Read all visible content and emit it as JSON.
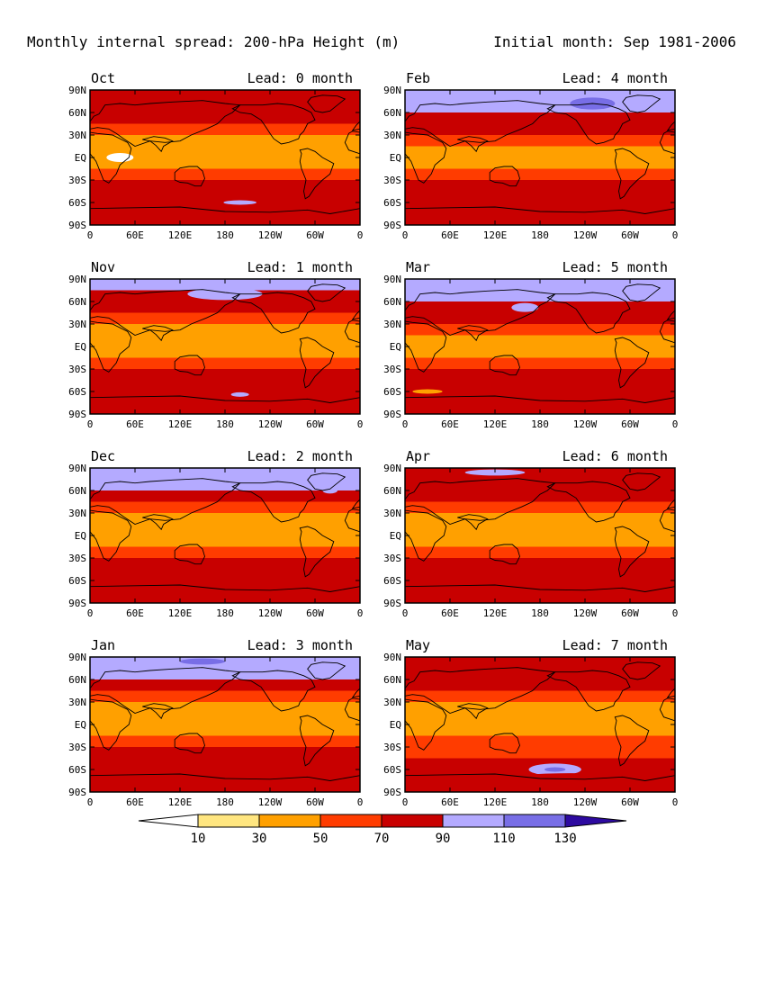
{
  "header": {
    "left": "Monthly internal spread: 200-hPa Height (m)",
    "right": "Initial month: Sep 1981-2006"
  },
  "chart_data": {
    "type": "heatmap",
    "variable": "200-hPa Height (m)",
    "colors": {
      "under": "#ffffff",
      "levels": [
        "#ffe680",
        "#ffa000",
        "#ff3c00",
        "#c80000",
        "#b4aaff",
        "#786ee6",
        "#2d0aa0"
      ],
      "land_outline": "#000000"
    },
    "colorbar": {
      "ticks": [
        "10",
        "30",
        "50",
        "70",
        "90",
        "110",
        "130"
      ],
      "extend": "both"
    },
    "y_ticks": [
      "90N",
      "60N",
      "30N",
      "EQ",
      "30S",
      "60S",
      "90S"
    ],
    "panels": [
      {
        "month": "Oct",
        "lead": "Lead: 0 month",
        "x_ticks": [
          "0",
          "60E",
          "120E",
          "180",
          "120W",
          "60W",
          "0"
        ],
        "bands": [
          3,
          3,
          3,
          2,
          1,
          1,
          1,
          2,
          3,
          3,
          3,
          3
        ],
        "patches": [
          {
            "lon": 40,
            "lat": 0,
            "rlon": 18,
            "rlat": 6,
            "level": 0
          },
          {
            "lon": 200,
            "lat": -60,
            "rlon": 22,
            "rlat": 3,
            "level": 4
          },
          {
            "lon": 320,
            "lat": 70,
            "rlon": 25,
            "rlat": 10,
            "level": 3
          }
        ]
      },
      {
        "month": "Feb",
        "lead": "Lead: 4 month",
        "x_ticks": [
          "0",
          "60E",
          "120E",
          "180",
          "120W",
          "60W",
          "0"
        ],
        "bands": [
          4,
          4,
          3,
          3,
          2,
          1,
          1,
          2,
          3,
          3,
          3,
          3
        ],
        "patches": [
          {
            "lon": 250,
            "lat": 72,
            "rlon": 30,
            "rlat": 8,
            "level": 5
          },
          {
            "lon": 190,
            "lat": -62,
            "rlon": 25,
            "rlat": 6,
            "level": 3
          }
        ]
      },
      {
        "month": "Nov",
        "lead": "Lead: 1 month",
        "x_ticks": [
          "0",
          "60E",
          "120E",
          "180",
          "120W",
          "60W",
          "0"
        ],
        "bands": [
          4,
          3,
          3,
          2,
          1,
          1,
          1,
          2,
          3,
          3,
          3,
          3
        ],
        "patches": [
          {
            "lon": 200,
            "lat": -64,
            "rlon": 12,
            "rlat": 3,
            "level": 4
          },
          {
            "lon": 180,
            "lat": 70,
            "rlon": 50,
            "rlat": 8,
            "level": 4
          }
        ]
      },
      {
        "month": "Mar",
        "lead": "Lead: 5 month",
        "x_ticks": [
          "0",
          "60E",
          "120E",
          "180",
          "120W",
          "60W",
          "0"
        ],
        "bands": [
          4,
          4,
          3,
          3,
          2,
          1,
          1,
          2,
          3,
          3,
          3,
          3
        ],
        "patches": [
          {
            "lon": 160,
            "lat": 52,
            "rlon": 18,
            "rlat": 6,
            "level": 4
          },
          {
            "lon": 30,
            "lat": -60,
            "rlon": 20,
            "rlat": 3,
            "level": 1
          }
        ]
      },
      {
        "month": "Dec",
        "lead": "Lead: 2 month",
        "x_ticks": [
          "0",
          "60E",
          "120E",
          "180",
          "120W",
          "60W",
          "0"
        ],
        "bands": [
          4,
          4,
          3,
          2,
          1,
          1,
          1,
          2,
          3,
          3,
          3,
          3
        ],
        "patches": [
          {
            "lon": 320,
            "lat": 60,
            "rlon": 10,
            "rlat": 4,
            "level": 4
          },
          {
            "lon": 180,
            "lat": -70,
            "rlon": 60,
            "rlat": 6,
            "level": 3
          }
        ]
      },
      {
        "month": "Apr",
        "lead": "Lead: 6 month",
        "x_ticks": [
          "0",
          "60E",
          "120E",
          "180",
          "120W",
          "60W",
          "0"
        ],
        "bands": [
          3,
          3,
          3,
          2,
          1,
          1,
          1,
          2,
          3,
          3,
          3,
          3
        ],
        "patches": [
          {
            "lon": 120,
            "lat": 84,
            "rlon": 40,
            "rlat": 4,
            "level": 4
          },
          {
            "lon": 220,
            "lat": -62,
            "rlon": 30,
            "rlat": 6,
            "level": 3
          }
        ]
      },
      {
        "month": "Jan",
        "lead": "Lead: 3 month",
        "x_ticks": [
          "0",
          "60E",
          "120E",
          "180",
          "120W",
          "60W",
          "0"
        ],
        "bands": [
          4,
          4,
          3,
          2,
          1,
          1,
          1,
          2,
          3,
          3,
          3,
          3
        ],
        "patches": [
          {
            "lon": 150,
            "lat": 84,
            "rlon": 30,
            "rlat": 4,
            "level": 5
          },
          {
            "lon": 220,
            "lat": -60,
            "rlon": 30,
            "rlat": 6,
            "level": 3
          }
        ]
      },
      {
        "month": "May",
        "lead": "Lead: 7 month",
        "x_ticks": [
          "0",
          "60E",
          "120E",
          "180",
          "120W",
          "60W",
          "0"
        ],
        "bands": [
          3,
          3,
          3,
          2,
          1,
          1,
          1,
          2,
          2,
          3,
          3,
          3
        ],
        "patches": [
          {
            "lon": 200,
            "lat": -60,
            "rlon": 35,
            "rlat": 8,
            "level": 4
          },
          {
            "lon": 200,
            "lat": -60,
            "rlon": 14,
            "rlat": 3,
            "level": 5
          },
          {
            "lon": 220,
            "lat": -70,
            "rlon": 70,
            "rlat": 5,
            "level": 3
          }
        ]
      }
    ]
  }
}
